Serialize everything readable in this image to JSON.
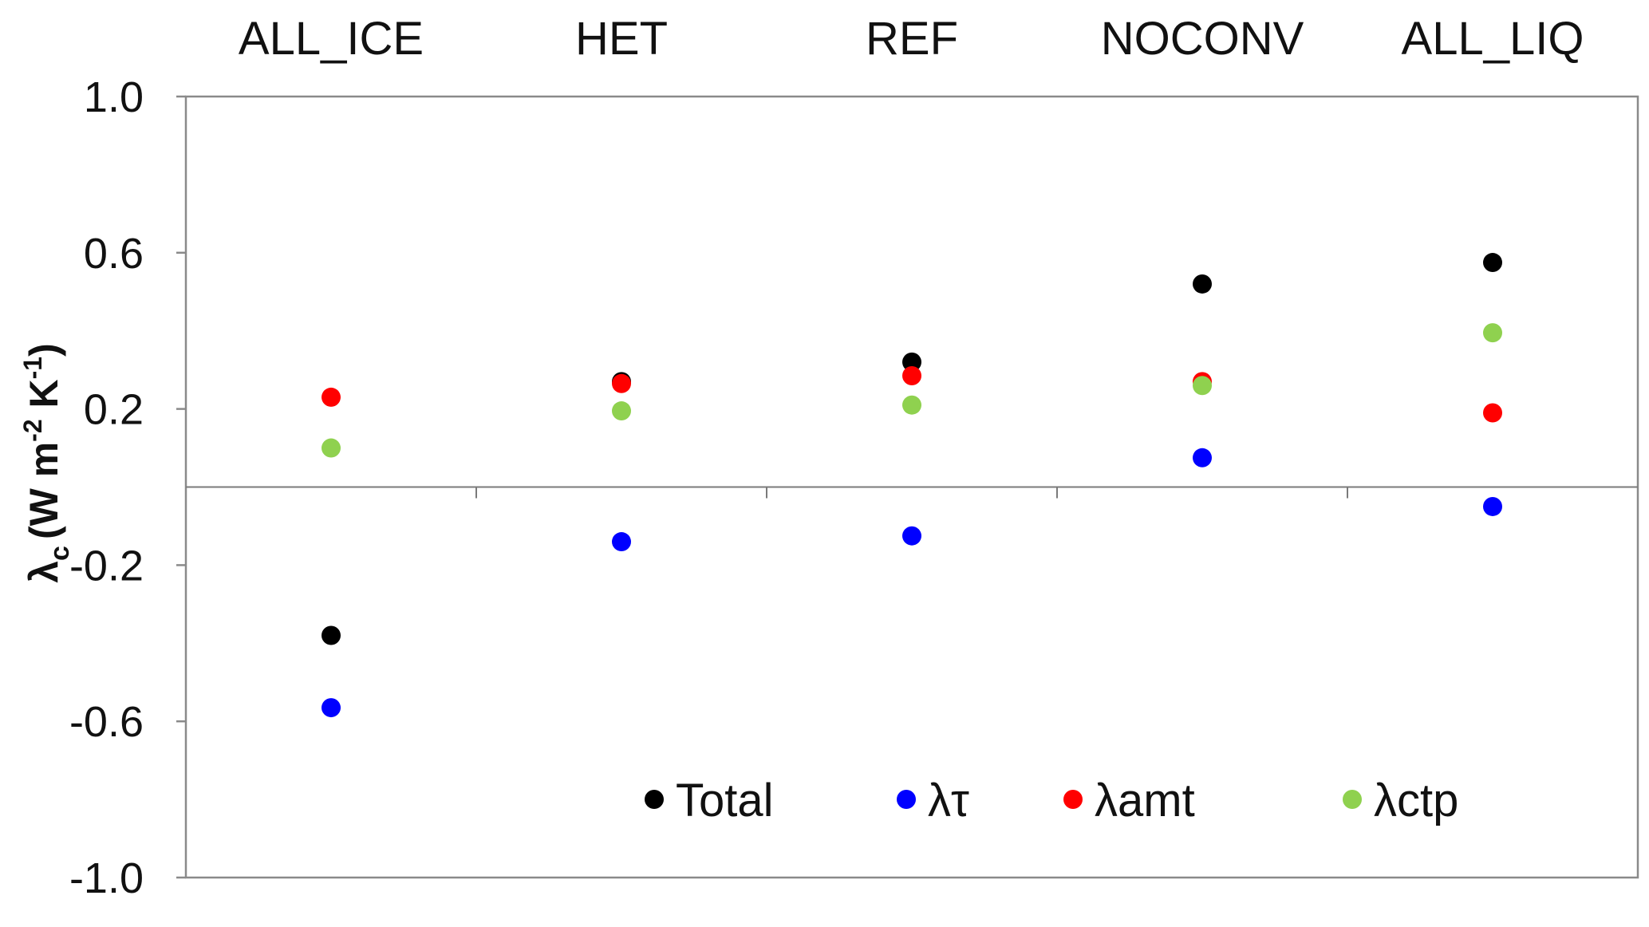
{
  "chart_data": {
    "type": "scatter",
    "categories": [
      "ALL_ICE",
      "HET",
      "REF",
      "NOCONV",
      "ALL_LIQ"
    ],
    "ylabel": {
      "symbol": "λ",
      "subscript": "c",
      "units": "(W m",
      "exp1": "-2",
      "units2": " K",
      "exp2": "-1",
      "close": ")"
    },
    "ylim": [
      -1.0,
      1.0
    ],
    "yticks": [
      1.0,
      0.6,
      0.2,
      -0.2,
      -0.6,
      -1.0
    ],
    "ytick_labels": [
      "1.0",
      "0.6",
      "0.2",
      "-0.2",
      "-0.6",
      "-1.0"
    ],
    "grid": false,
    "legend_position": "bottom-right",
    "series": [
      {
        "name": "Total",
        "color": "#000000",
        "values": [
          -0.38,
          0.27,
          0.32,
          0.52,
          0.575
        ]
      },
      {
        "name": "λτ",
        "color": "#0000ff",
        "values": [
          -0.565,
          -0.14,
          -0.125,
          0.075,
          -0.05
        ]
      },
      {
        "name": "λamt",
        "color": "#ff0000",
        "values": [
          0.23,
          0.265,
          0.285,
          0.27,
          0.19
        ]
      },
      {
        "name": "λctp",
        "color": "#8fd14f",
        "values": [
          0.1,
          0.195,
          0.21,
          0.26,
          0.395
        ]
      }
    ]
  }
}
